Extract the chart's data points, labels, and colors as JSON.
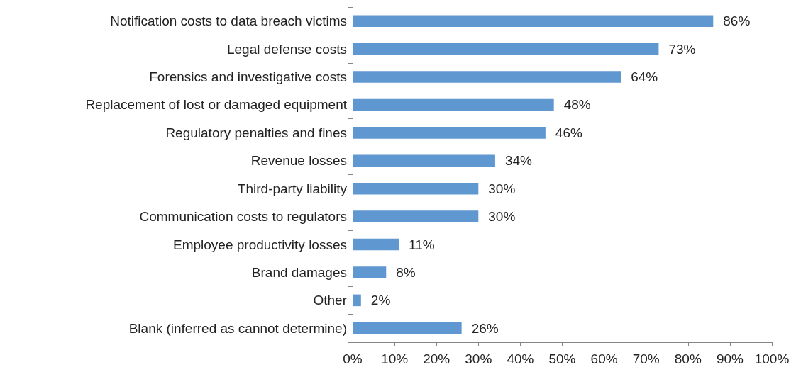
{
  "chart_data": {
    "type": "bar",
    "orientation": "horizontal",
    "categories": [
      "Notification costs to data breach victims",
      "Legal defense costs",
      "Forensics and investigative costs",
      "Replacement of lost or damaged equipment",
      "Regulatory penalties and fines",
      "Revenue losses",
      "Third-party liability",
      "Communication costs to regulators",
      "Employee productivity losses",
      "Brand damages",
      "Other",
      "Blank (inferred as cannot determine)"
    ],
    "values": [
      86,
      73,
      64,
      48,
      46,
      34,
      30,
      30,
      11,
      8,
      2,
      26
    ],
    "value_labels": [
      "86%",
      "73%",
      "64%",
      "48%",
      "46%",
      "34%",
      "30%",
      "30%",
      "11%",
      "8%",
      "2%",
      "26%"
    ],
    "color": "#5f97d0",
    "xlim": [
      0,
      100
    ],
    "xticks": [
      {
        "value": 0,
        "label": "0%"
      },
      {
        "value": 10,
        "label": "10%"
      },
      {
        "value": 20,
        "label": "20%"
      },
      {
        "value": 30,
        "label": "30%"
      },
      {
        "value": 40,
        "label": "40%"
      },
      {
        "value": 50,
        "label": "50%"
      },
      {
        "value": 60,
        "label": "60%"
      },
      {
        "value": 70,
        "label": "70%"
      },
      {
        "value": 80,
        "label": "80%"
      },
      {
        "value": 90,
        "label": "90%"
      },
      {
        "value": 100,
        "label": "100%"
      }
    ],
    "grid": false
  }
}
